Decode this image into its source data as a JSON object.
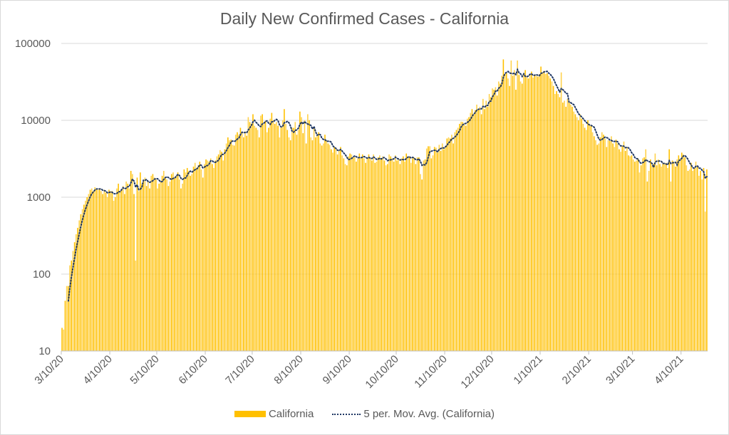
{
  "chart_data": {
    "type": "bar",
    "title": "Daily New Confirmed Cases - California",
    "xlabel": "",
    "ylabel": "",
    "yscale": "log",
    "ylim": [
      10,
      100000
    ],
    "yticks": [
      "10",
      "100",
      "1000",
      "10000",
      "100000"
    ],
    "ytick_values": [
      10,
      100,
      1000,
      10000,
      100000
    ],
    "grid": true,
    "legend_position": "bottom",
    "start_date": "3/10/20",
    "end_date": "4/26/21",
    "xtick_labels": [
      "3/10/20",
      "4/10/20",
      "5/10/20",
      "6/10/20",
      "7/10/20",
      "8/10/20",
      "9/10/20",
      "10/10/20",
      "11/10/20",
      "12/10/20",
      "1/10/21",
      "2/10/21",
      "3/10/21",
      "4/10/21"
    ],
    "xtick_day_index": [
      0,
      31,
      61,
      92,
      122,
      153,
      184,
      214,
      245,
      275,
      306,
      337,
      365,
      396
    ],
    "series": [
      {
        "name": "California",
        "type": "bar",
        "color": "#FFC000",
        "values": [
          20,
          19,
          45,
          70,
          70,
          130,
          150,
          200,
          260,
          330,
          400,
          500,
          600,
          700,
          800,
          900,
          1000,
          1100,
          1250,
          1300,
          1200,
          1350,
          1300,
          1250,
          1300,
          1200,
          1100,
          1250,
          1150,
          1000,
          1250,
          1200,
          1200,
          900,
          1000,
          1300,
          1500,
          1200,
          1250,
          1400,
          1100,
          1600,
          1500,
          1300,
          2200,
          2000,
          1100,
          150,
          1800,
          1200,
          2100,
          1500,
          1700,
          1800,
          1400,
          1600,
          1300,
          1900,
          2000,
          1800,
          1700,
          1300,
          1500,
          1600,
          1900,
          2200,
          1800,
          1700,
          1400,
          1600,
          2000,
          2100,
          1800,
          1900,
          2100,
          1700,
          1300,
          1500,
          2300,
          2100,
          2400,
          2200,
          1900,
          2000,
          2500,
          2800,
          2400,
          2600,
          2900,
          2300,
          1800,
          2700,
          3100,
          3000,
          2900,
          3200,
          2700,
          2400,
          3000,
          3400,
          3600,
          4100,
          3900,
          3000,
          4200,
          5000,
          6000,
          5500,
          5600,
          4800,
          4700,
          6500,
          7000,
          6500,
          8000,
          7000,
          6000,
          7200,
          6300,
          11000,
          9500,
          9000,
          12000,
          8500,
          8000,
          7500,
          6000,
          11500,
          12000,
          9000,
          9800,
          7000,
          8000,
          10500,
          12500,
          10000,
          9000,
          9500,
          8500,
          6000,
          8000,
          10000,
          14000,
          9000,
          7500,
          6000,
          5500,
          8000,
          8000,
          9500,
          6500,
          7500,
          13000,
          11000,
          6800,
          10000,
          5000,
          12000,
          10000,
          6000,
          5500,
          8000,
          6000,
          6500,
          7000,
          5000,
          4700,
          5000,
          6500,
          5500,
          5000,
          4800,
          4200,
          3800,
          4500,
          4300,
          3600,
          4000,
          4500,
          3500,
          3200,
          2700,
          2600,
          3400,
          3700,
          3600,
          3300,
          3300,
          2900,
          3200,
          3700,
          3200,
          3600,
          3200,
          2800,
          3300,
          3600,
          3200,
          3000,
          3600,
          2800,
          2900,
          3300,
          3500,
          3200,
          3400,
          3000,
          2600,
          2700,
          3600,
          3400,
          3200,
          2900,
          3500,
          3000,
          3100,
          2700,
          3200,
          3400,
          2900,
          3700,
          3400,
          3400,
          2800,
          3200,
          3300,
          2700,
          3300,
          3300,
          2000,
          1700,
          3000,
          3100,
          4300,
          4600,
          4600,
          3200,
          3500,
          4500,
          4400,
          3800,
          4800,
          4000,
          5000,
          4200,
          4600,
          5800,
          6000,
          5800,
          6500,
          5000,
          7000,
          7500,
          8000,
          9000,
          9600,
          9500,
          9000,
          8500,
          10500,
          11000,
          12500,
          14000,
          12000,
          13500,
          16000,
          14000,
          15000,
          12000,
          19000,
          14000,
          18000,
          15000,
          22000,
          20000,
          26000,
          25000,
          27000,
          21000,
          32000,
          30000,
          38000,
          62000,
          40000,
          41000,
          35000,
          28000,
          60000,
          38000,
          45000,
          25000,
          60000,
          39000,
          32000,
          30000,
          40000,
          45000,
          38000,
          35000,
          40000,
          43000,
          36000,
          39000,
          38000,
          37000,
          40000,
          50000,
          42000,
          44000,
          40000,
          41000,
          38000,
          35000,
          32000,
          28000,
          22000,
          24000,
          22000,
          20000,
          42000,
          17000,
          18000,
          15000,
          19000,
          17000,
          16000,
          15000,
          13000,
          12000,
          11000,
          10000,
          12000,
          10500,
          9000,
          8000,
          7500,
          10000,
          9000,
          8500,
          7000,
          6200,
          5500,
          4800,
          5000,
          6000,
          7000,
          6500,
          5800,
          4500,
          5500,
          5400,
          6200,
          5000,
          4500,
          5600,
          5000,
          4200,
          3900,
          4600,
          5300,
          4000,
          4500,
          3500,
          3400,
          3500,
          3100,
          2900,
          3000,
          3200,
          2100,
          2600,
          3200,
          3300,
          4200,
          1600,
          2200,
          3100,
          2600,
          2700,
          3700,
          2600,
          3100,
          2700,
          2500,
          2800,
          2700,
          2800,
          2400,
          4200,
          1600,
          3000,
          2900,
          2500,
          3100,
          3500,
          3200,
          3800,
          3600,
          3300,
          2600,
          2200,
          2300,
          2800,
          2200,
          2400,
          2900,
          2500,
          1900,
          2200,
          1700,
          2400,
          650,
          2300
        ]
      },
      {
        "name": "5 per. Mov. Avg. (California)",
        "type": "line",
        "period": 5,
        "color": "#203864",
        "style": "dotted"
      }
    ]
  }
}
